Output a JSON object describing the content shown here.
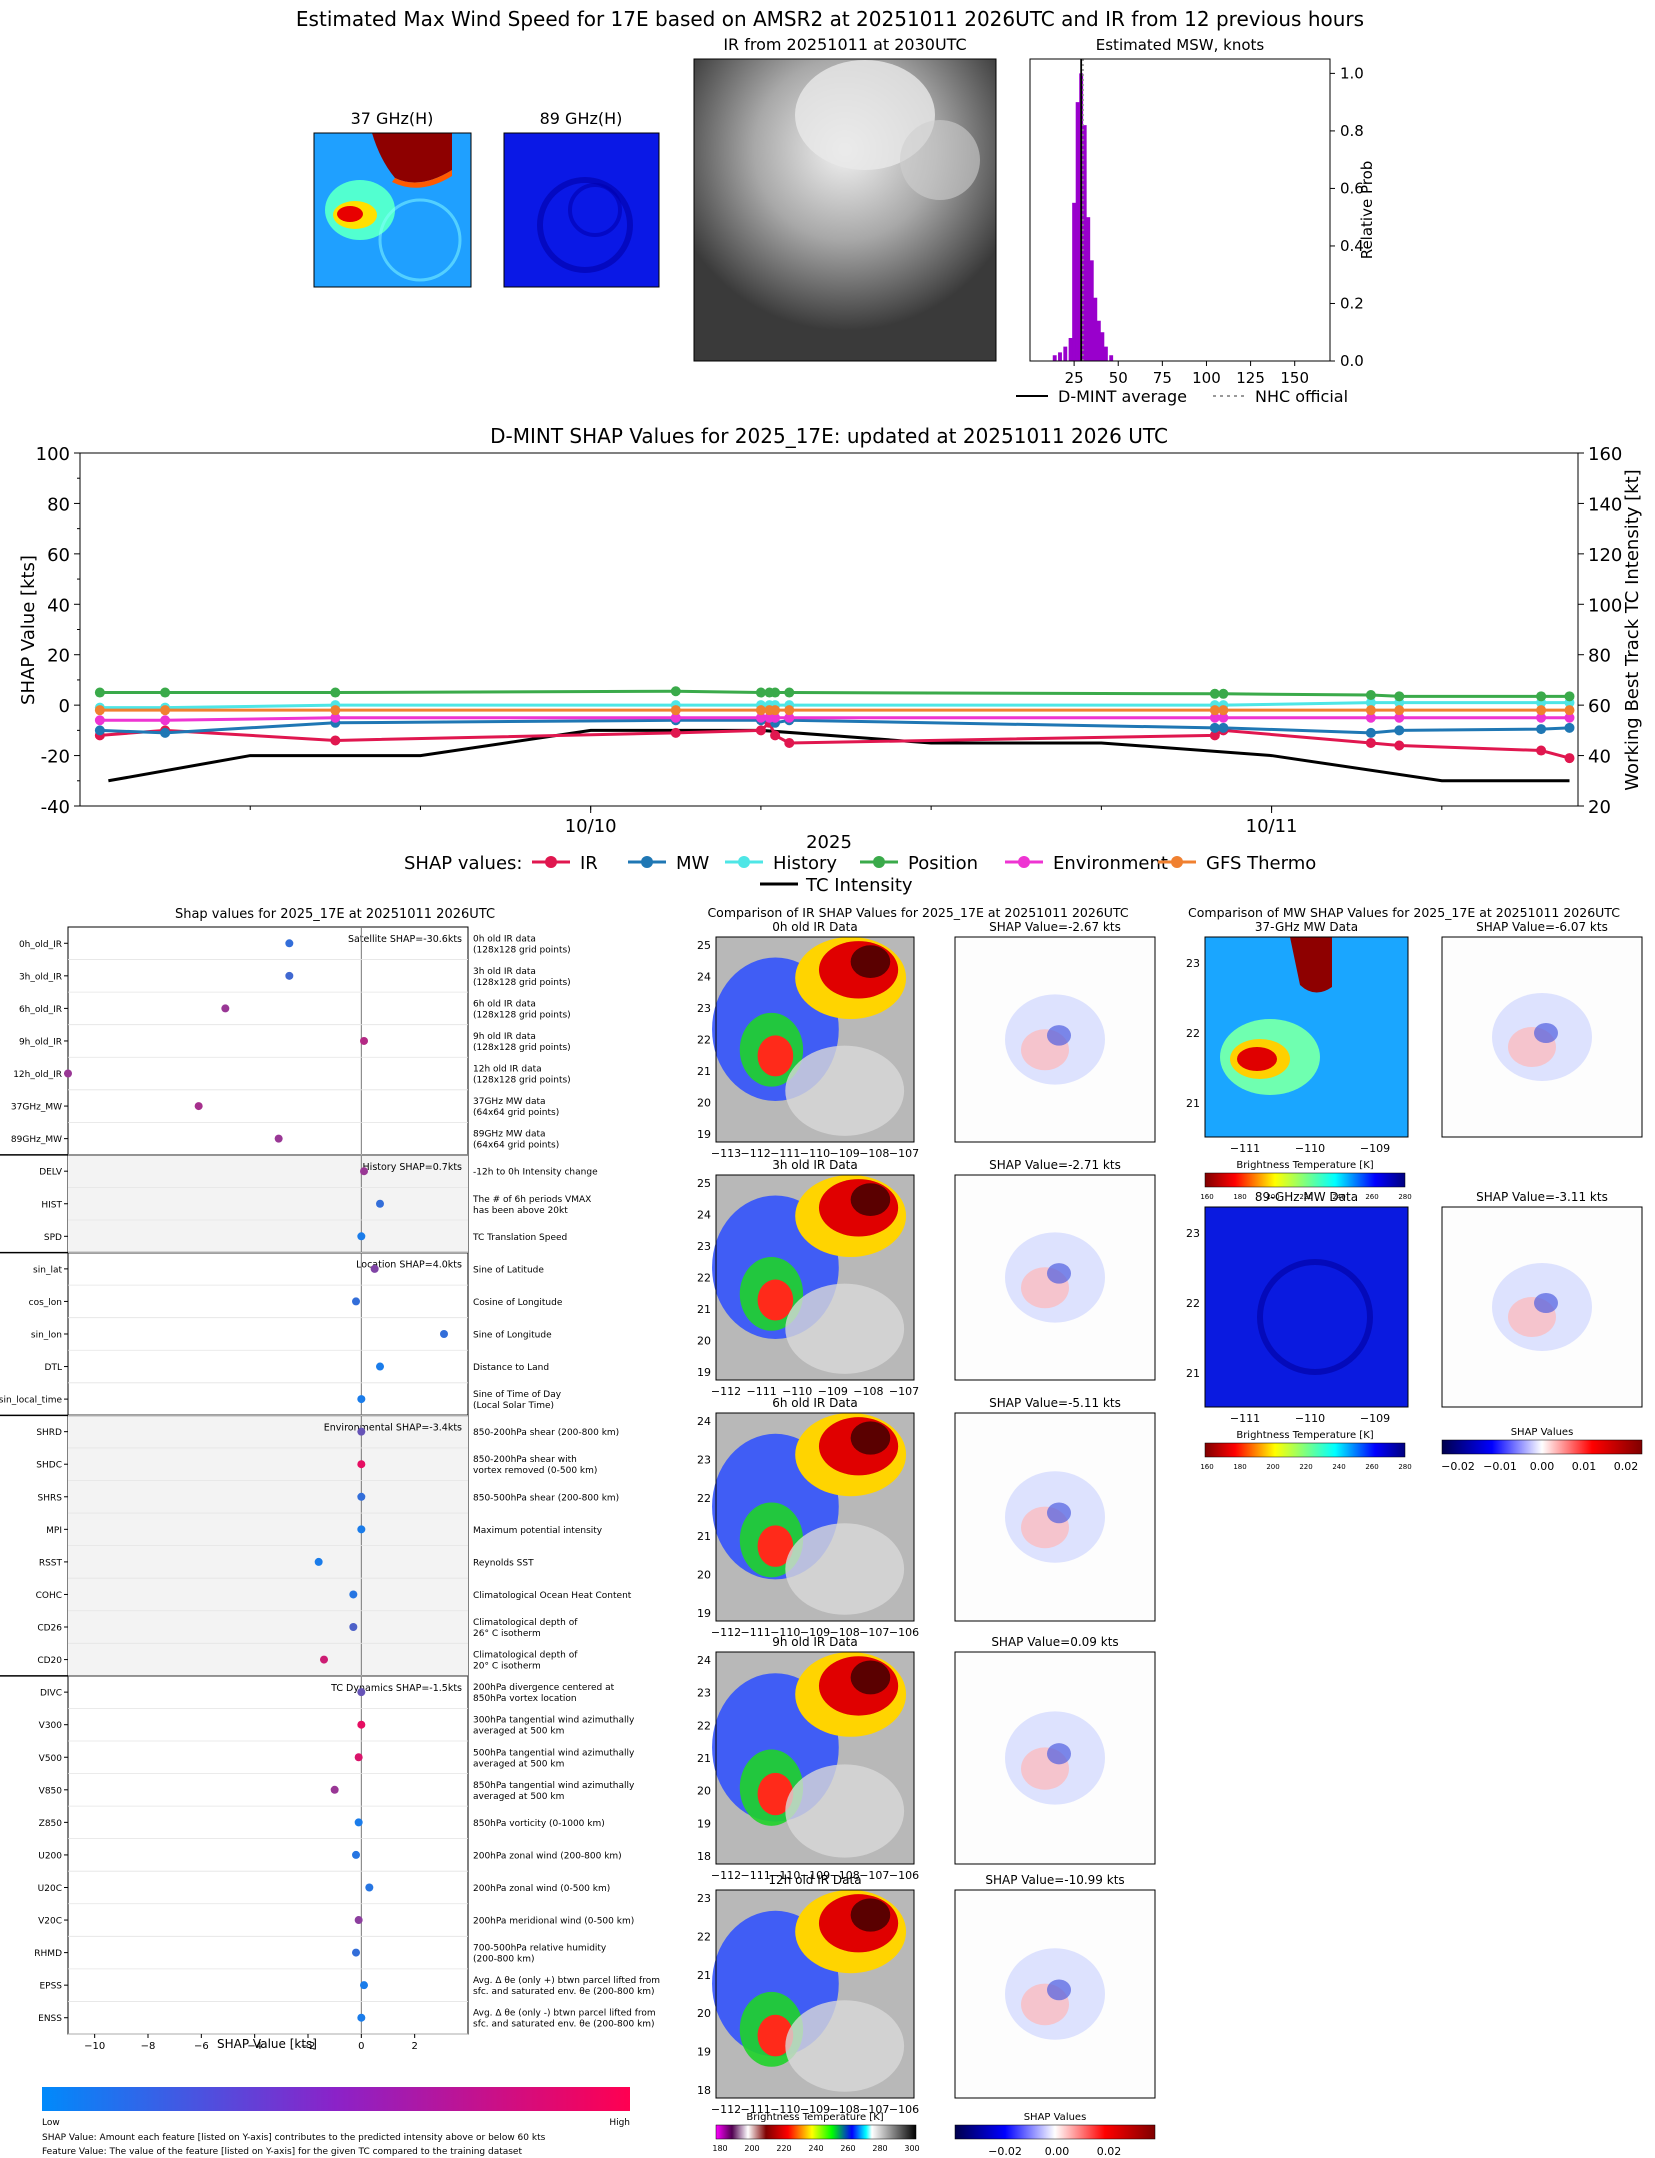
{
  "header": {
    "main_title": "Estimated Max Wind Speed for 17E based on AMSR2 at 20251011 2026UTC and IR from 12 previous hours",
    "mw37_title": "37 GHz(H)",
    "mw89_title": "89 GHz(H)",
    "ir_title": "IR from 20251011 at 2030UTC",
    "msw_title": "Estimated MSW, knots",
    "legend_dmint": "D-MINT average",
    "legend_nhc": "NHC official"
  },
  "colors": {
    "ir": "#e0174f",
    "mw": "#1f77b4",
    "history": "#4ee6e6",
    "position": "#3aaa4a",
    "environment": "#ee34d2",
    "gfs": "#f08030",
    "tc": "#000000",
    "hist_bar": "#9900cc"
  },
  "chart_data": [
    {
      "type": "bar",
      "title": "Estimated MSW, knots",
      "ylabel": "Relative Prob",
      "xlim": [
        0,
        170
      ],
      "ylim": [
        0,
        1.05
      ],
      "xticks": [
        25,
        50,
        75,
        100,
        125,
        150
      ],
      "yticks": [
        "0.0",
        "0.2",
        "0.4",
        "0.6",
        "0.8",
        "1.0"
      ],
      "bins": [
        {
          "x": 14,
          "v": 0.02
        },
        {
          "x": 17,
          "v": 0.03
        },
        {
          "x": 20,
          "v": 0.05
        },
        {
          "x": 23,
          "v": 0.08
        },
        {
          "x": 25,
          "v": 0.55
        },
        {
          "x": 27,
          "v": 0.9
        },
        {
          "x": 29,
          "v": 1.0
        },
        {
          "x": 31,
          "v": 0.82
        },
        {
          "x": 33,
          "v": 0.5
        },
        {
          "x": 35,
          "v": 0.35
        },
        {
          "x": 37,
          "v": 0.22
        },
        {
          "x": 39,
          "v": 0.14
        },
        {
          "x": 41,
          "v": 0.1
        },
        {
          "x": 43,
          "v": 0.05
        },
        {
          "x": 46,
          "v": 0.02
        }
      ],
      "dmint_average": 29,
      "nhc_official": 30
    },
    {
      "type": "line",
      "title": "D-MINT SHAP Values for 2025_17E: updated at 20251011 2026 UTC",
      "ylabel": "SHAP Value [kts]",
      "y2label": "Working Best Track TC Intensity [kt]",
      "xlabel": "2025",
      "ylim": [
        -40,
        100
      ],
      "y2lim": [
        20,
        160
      ],
      "yticks": [
        -40,
        -20,
        0,
        20,
        40,
        60,
        80,
        100
      ],
      "y2ticks": [
        20,
        40,
        60,
        80,
        100,
        120,
        140,
        160
      ],
      "xlim_hours": [
        -18,
        30
      ],
      "xticks": [
        {
          "h": 0,
          "label": "10/10"
        },
        {
          "h": 24,
          "label": "10/11"
        }
      ],
      "legend_title": "SHAP values:",
      "series": [
        {
          "name": "IR",
          "color": "#e0174f",
          "x": [
            -17.3,
            -15,
            -9,
            3,
            6,
            6.3,
            6.5,
            7,
            22,
            22.3,
            27.5,
            28.5,
            33.5,
            34.5
          ],
          "y": [
            -12,
            -10,
            -14,
            -11,
            -10,
            -7,
            -12,
            -15,
            -12,
            -10,
            -15,
            -16,
            -18,
            -21
          ]
        },
        {
          "name": "MW",
          "color": "#1f77b4",
          "x": [
            -17.3,
            -15,
            -9,
            3,
            6,
            6.3,
            6.5,
            7,
            22,
            22.3,
            27.5,
            28.5,
            33.5,
            34.5
          ],
          "y": [
            -10,
            -11,
            -7,
            -6,
            -6,
            -5,
            -7,
            -6,
            -9,
            -9,
            -11,
            -10,
            -9.5,
            -9
          ]
        },
        {
          "name": "History",
          "color": "#4ee6e6",
          "x": [
            -17.3,
            -15,
            -9,
            3,
            6,
            6.3,
            6.5,
            7,
            22,
            22.3,
            27.5,
            28.5,
            33.5,
            34.5
          ],
          "y": [
            -1,
            -1,
            0,
            0,
            0,
            0,
            0,
            0,
            0,
            0,
            1,
            1,
            1,
            1
          ]
        },
        {
          "name": "Position",
          "color": "#3aaa4a",
          "x": [
            -17.3,
            -15,
            -9,
            3,
            6,
            6.3,
            6.5,
            7,
            22,
            22.3,
            27.5,
            28.5,
            33.5,
            34.5
          ],
          "y": [
            5,
            5,
            5,
            5.5,
            5,
            5,
            5,
            5,
            4.5,
            4.5,
            4,
            3.5,
            3.5,
            3.5
          ]
        },
        {
          "name": "Environment",
          "color": "#ee34d2",
          "x": [
            -17.3,
            -15,
            -9,
            3,
            6,
            6.3,
            6.5,
            7,
            22,
            22.3,
            27.5,
            28.5,
            33.5,
            34.5
          ],
          "y": [
            -6,
            -6,
            -5,
            -5,
            -5,
            -5,
            -5,
            -5,
            -5,
            -5,
            -5,
            -5,
            -5,
            -5
          ]
        },
        {
          "name": "GFS Thermo",
          "color": "#f08030",
          "x": [
            -17.3,
            -15,
            -9,
            3,
            6,
            6.3,
            6.5,
            7,
            22,
            22.3,
            27.5,
            28.5,
            33.5,
            34.5
          ],
          "y": [
            -2,
            -2,
            -2,
            -2,
            -2,
            -2,
            -2,
            -2,
            -2,
            -2,
            -2,
            -2,
            -2,
            -2
          ]
        }
      ],
      "tc_intensity": {
        "name": "TC Intensity",
        "x": [
          -17,
          -12,
          -6,
          0,
          6,
          12,
          18,
          24,
          30,
          34.5
        ],
        "y": [
          30,
          40,
          40,
          50,
          50,
          45,
          45,
          40,
          30,
          30
        ]
      }
    },
    {
      "type": "scatter",
      "title": "Shap values for 2025_17E at 20251011 2026UTC",
      "xlabel": "SHAP Value [kts]",
      "xlim": [
        -11,
        4
      ],
      "xticks": [
        -10,
        -8,
        -6,
        -4,
        -2,
        0,
        2
      ],
      "groups": [
        {
          "label": "Satellite SHAP=-30.6kts",
          "shaded": false,
          "count": 7
        },
        {
          "label": "History SHAP=0.7kts",
          "shaded": true,
          "count": 3
        },
        {
          "label": "Location SHAP=4.0kts",
          "shaded": false,
          "count": 5
        },
        {
          "label": "Environmental SHAP=-3.4kts",
          "shaded": true,
          "count": 8
        },
        {
          "label": "TC Dynamics SHAP=-1.5kts",
          "shaded": false,
          "count": 11
        }
      ],
      "features": [
        {
          "name": "0h_old_IR",
          "desc": [
            "0h old IR data",
            "(128x128 grid points)"
          ],
          "shap": -2.7,
          "f": 0.2
        },
        {
          "name": "3h_old_IR",
          "desc": [
            "3h old IR data",
            "(128x128 grid points)"
          ],
          "shap": -2.7,
          "f": 0.25
        },
        {
          "name": "6h_old_IR",
          "desc": [
            "6h old IR data",
            "(128x128 grid points)"
          ],
          "shap": -5.1,
          "f": 0.6
        },
        {
          "name": "9h_old_IR",
          "desc": [
            "9h old IR data",
            "(128x128 grid points)"
          ],
          "shap": 0.1,
          "f": 0.7
        },
        {
          "name": "12h_old_IR",
          "desc": [
            "12h old IR data",
            "(128x128 grid points)"
          ],
          "shap": -11.0,
          "f": 0.6
        },
        {
          "name": "37GHz_MW",
          "desc": [
            "37GHz MW data",
            "(64x64 grid points)"
          ],
          "shap": -6.1,
          "f": 0.65
        },
        {
          "name": "89GHz_MW",
          "desc": [
            "89GHz MW data",
            "(64x64 grid points)"
          ],
          "shap": -3.1,
          "f": 0.6
        },
        {
          "name": "DELV",
          "desc": [
            "-12h to 0h Intensity change"
          ],
          "shap": 0.1,
          "f": 0.6
        },
        {
          "name": "HIST",
          "desc": [
            "The # of 6h periods VMAX",
            "has been above 20kt"
          ],
          "shap": 0.7,
          "f": 0.2
        },
        {
          "name": "SPD",
          "desc": [
            "TC Translation Speed"
          ],
          "shap": 0.0,
          "f": 0.1
        },
        {
          "name": "sin_lat",
          "desc": [
            "Sine of Latitude"
          ],
          "shap": 0.5,
          "f": 0.5
        },
        {
          "name": "cos_lon",
          "desc": [
            "Cosine of Longitude"
          ],
          "shap": -0.2,
          "f": 0.2
        },
        {
          "name": "sin_lon",
          "desc": [
            "Sine of Longitude"
          ],
          "shap": 3.1,
          "f": 0.2
        },
        {
          "name": "DTL",
          "desc": [
            "Distance to Land"
          ],
          "shap": 0.7,
          "f": 0.1
        },
        {
          "name": "sin_local_time",
          "desc": [
            "Sine of Time of Day",
            "(Local Solar Time)"
          ],
          "shap": 0.0,
          "f": 0.1
        },
        {
          "name": "SHRD",
          "desc": [
            "850-200hPa shear (200-800 km)"
          ],
          "shap": 0.0,
          "f": 0.4
        },
        {
          "name": "SHDC",
          "desc": [
            "850-200hPa shear with",
            "vortex removed (0-500 km)"
          ],
          "shap": 0.0,
          "f": 0.9
        },
        {
          "name": "SHRS",
          "desc": [
            "850-500hPa shear (200-800 km)"
          ],
          "shap": 0.0,
          "f": 0.2
        },
        {
          "name": "MPI",
          "desc": [
            "Maximum potential intensity"
          ],
          "shap": 0.0,
          "f": 0.1
        },
        {
          "name": "RSST",
          "desc": [
            "Reynolds SST"
          ],
          "shap": -1.6,
          "f": 0.1
        },
        {
          "name": "COHC",
          "desc": [
            "Climatological Ocean Heat Content"
          ],
          "shap": -0.3,
          "f": 0.15
        },
        {
          "name": "CD26",
          "desc": [
            "Climatological depth of",
            "26° C isotherm"
          ],
          "shap": -0.3,
          "f": 0.3
        },
        {
          "name": "CD20",
          "desc": [
            "Climatological depth of",
            "20° C isotherm"
          ],
          "shap": -1.4,
          "f": 0.8
        },
        {
          "name": "DIVC",
          "desc": [
            "200hPa divergence centered at",
            "850hPa vortex location"
          ],
          "shap": 0.0,
          "f": 0.4
        },
        {
          "name": "V300",
          "desc": [
            "300hPa tangential wind azimuthally",
            "averaged at 500 km"
          ],
          "shap": 0.0,
          "f": 0.9
        },
        {
          "name": "V500",
          "desc": [
            "500hPa tangential wind azimuthally",
            "averaged at 500 km"
          ],
          "shap": -0.1,
          "f": 0.85
        },
        {
          "name": "V850",
          "desc": [
            "850hPa tangential wind azimuthally",
            "averaged at 500 km"
          ],
          "shap": -1.0,
          "f": 0.6
        },
        {
          "name": "Z850",
          "desc": [
            "850hPa vorticity (0-1000 km)"
          ],
          "shap": -0.1,
          "f": 0.1
        },
        {
          "name": "U200",
          "desc": [
            "200hPa zonal wind (200-800 km)"
          ],
          "shap": -0.2,
          "f": 0.15
        },
        {
          "name": "U20C",
          "desc": [
            "200hPa zonal wind (0-500 km)"
          ],
          "shap": 0.3,
          "f": 0.15
        },
        {
          "name": "V20C",
          "desc": [
            "200hPa meridional wind (0-500 km)"
          ],
          "shap": -0.1,
          "f": 0.55
        },
        {
          "name": "RHMD",
          "desc": [
            "700-500hPa relative humidity",
            "(200-800 km)"
          ],
          "shap": -0.2,
          "f": 0.2
        },
        {
          "name": "EPSS",
          "desc": [
            "Avg. Δ θe (only +) btwn parcel lifted from",
            "sfc. and saturated env. θe (200-800 km)"
          ],
          "shap": 0.1,
          "f": 0.1
        },
        {
          "name": "ENSS",
          "desc": [
            "Avg. Δ θe (only -) btwn parcel lifted from",
            "sfc. and saturated env. θe (200-800 km)"
          ],
          "shap": 0.0,
          "f": 0.1
        }
      ],
      "colorbar_low": "Low",
      "colorbar_high": "High",
      "footnote1": "SHAP Value: Amount each feature [listed on Y-axis] contributes to the predicted intensity above or below 60 kts",
      "footnote2": "Feature Value: The value of the feature [listed on Y-axis] for the given TC compared to the training dataset"
    }
  ],
  "ir_comparison": {
    "title": "Comparison of IR SHAP Values for 2025_17E at 20251011 2026UTC",
    "panels": [
      {
        "label": "0h old IR Data",
        "shap": "SHAP Value=-2.67 kts",
        "yticks": [
          "25",
          "24",
          "23",
          "22",
          "21",
          "20",
          "19"
        ],
        "xticks": [
          "−113",
          "−112",
          "−111",
          "−110",
          "−109",
          "−108",
          "−107"
        ]
      },
      {
        "label": "3h old IR Data",
        "shap": "SHAP Value=-2.71 kts",
        "yticks": [
          "25",
          "24",
          "23",
          "22",
          "21",
          "20",
          "19"
        ],
        "xticks": [
          "−112",
          "−111",
          "−110",
          "−109",
          "−108",
          "−107"
        ]
      },
      {
        "label": "6h old IR Data",
        "shap": "SHAP Value=-5.11 kts",
        "yticks": [
          "24",
          "23",
          "22",
          "21",
          "20",
          "19"
        ],
        "xticks": [
          "−112",
          "−111",
          "−110",
          "−109",
          "−108",
          "−107",
          "−106"
        ]
      },
      {
        "label": "9h old IR Data",
        "shap": "SHAP Value=0.09 kts",
        "yticks": [
          "24",
          "23",
          "22",
          "21",
          "20",
          "19",
          "18"
        ],
        "xticks": [
          "−112",
          "−111",
          "−110",
          "−109",
          "−108",
          "−107",
          "−106"
        ]
      },
      {
        "label": "12h old IR Data",
        "shap": "SHAP Value=-10.99 kts",
        "yticks": [
          "23",
          "22",
          "21",
          "20",
          "19",
          "18"
        ],
        "xticks": [
          "−112",
          "−111",
          "−110",
          "−109",
          "−108",
          "−107",
          "−106"
        ]
      }
    ],
    "cbar_label": "Brightness Temperature [K]",
    "cbar_ticks": [
      "180",
      "200",
      "220",
      "240",
      "260",
      "280",
      "300"
    ],
    "shap_cbar_label": "SHAP Values",
    "shap_cbar_ticks": [
      "−0.02",
      "0.00",
      "0.02"
    ]
  },
  "mw_comparison": {
    "title": "Comparison of MW SHAP Values for 2025_17E at 20251011 2026UTC",
    "panels": [
      {
        "label": "37-GHz MW Data",
        "shap": "SHAP Value=-6.07 kts",
        "yticks": [
          "23",
          "22",
          "21"
        ],
        "xticks": [
          "−111",
          "−110",
          "−109"
        ]
      },
      {
        "label": "89-GHz MW Data",
        "shap": "SHAP Value=-3.11 kts",
        "yticks": [
          "23",
          "22",
          "21"
        ],
        "xticks": [
          "−111",
          "−110",
          "−109"
        ]
      }
    ],
    "cbar_label": "Brightness Temperature [K]",
    "cbar_ticks": [
      "160",
      "180",
      "200",
      "220",
      "240",
      "260",
      "280"
    ],
    "shap_cbar_label": "SHAP Values",
    "shap_cbar_ticks": [
      "−0.02",
      "−0.01",
      "0.00",
      "0.01",
      "0.02"
    ]
  }
}
